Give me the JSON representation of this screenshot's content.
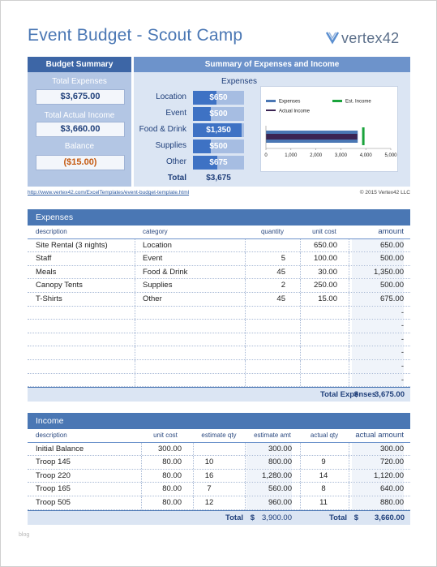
{
  "title": "Event Budget - Scout Camp",
  "logo": {
    "text": "vertex42",
    "icon": "vertex42-logo-icon"
  },
  "summary": {
    "header": "Budget Summary",
    "total_expenses_label": "Total Expenses",
    "total_expenses": "$3,675.00",
    "total_income_label": "Total Actual Income",
    "total_income": "$3,660.00",
    "balance_label": "Balance",
    "balance": "($15.00)"
  },
  "summary_right": {
    "header": "Summary of Expenses and Income",
    "expenses_header": "Expenses",
    "rows": [
      {
        "label": "Location",
        "value": "$650",
        "amount": 650
      },
      {
        "label": "Event",
        "value": "$500",
        "amount": 500
      },
      {
        "label": "Food & Drink",
        "value": "$1,350",
        "amount": 1350
      },
      {
        "label": "Supplies",
        "value": "$500",
        "amount": 500
      },
      {
        "label": "Other",
        "value": "$675",
        "amount": 675
      }
    ],
    "total_label": "Total",
    "total_value": "$3,675"
  },
  "chart_data": {
    "type": "bar",
    "orientation": "horizontal",
    "series": [
      {
        "name": "Expenses",
        "values": [
          3675
        ],
        "color": "#4a77b4"
      },
      {
        "name": "Actual Income",
        "values": [
          3660
        ],
        "color": "#3b2453"
      }
    ],
    "markers": [
      {
        "name": "Est. Income",
        "value": 3900,
        "color": "#1aa33b"
      }
    ],
    "xlim": [
      0,
      5000
    ],
    "ticks": [
      "0",
      "1,000",
      "2,000",
      "3,000",
      "4,000",
      "5,000"
    ],
    "legend": "top"
  },
  "link": "http://www.vertex42.com/ExcelTemplates/event-budget-template.html",
  "copyright": "© 2015 Vertex42 LLC",
  "expenses": {
    "header": "Expenses",
    "columns": [
      "description",
      "category",
      "quantity",
      "unit cost",
      "amount"
    ],
    "rows": [
      {
        "description": "Site Rental (3 nights)",
        "category": "Location",
        "quantity": "",
        "unit_cost": "650.00",
        "amount": "650.00"
      },
      {
        "description": "Staff",
        "category": "Event",
        "quantity": "5",
        "unit_cost": "100.00",
        "amount": "500.00"
      },
      {
        "description": "Meals",
        "category": "Food & Drink",
        "quantity": "45",
        "unit_cost": "30.00",
        "amount": "1,350.00"
      },
      {
        "description": "Canopy Tents",
        "category": "Supplies",
        "quantity": "2",
        "unit_cost": "250.00",
        "amount": "500.00"
      },
      {
        "description": "T-Shirts",
        "category": "Other",
        "quantity": "45",
        "unit_cost": "15.00",
        "amount": "675.00"
      },
      {
        "description": "",
        "category": "",
        "quantity": "",
        "unit_cost": "",
        "amount": "-"
      },
      {
        "description": "",
        "category": "",
        "quantity": "",
        "unit_cost": "",
        "amount": "-"
      },
      {
        "description": "",
        "category": "",
        "quantity": "",
        "unit_cost": "",
        "amount": "-"
      },
      {
        "description": "",
        "category": "",
        "quantity": "",
        "unit_cost": "",
        "amount": "-"
      },
      {
        "description": "",
        "category": "",
        "quantity": "",
        "unit_cost": "",
        "amount": "-"
      },
      {
        "description": "",
        "category": "",
        "quantity": "",
        "unit_cost": "",
        "amount": "-"
      }
    ],
    "total_label": "Total Expenses",
    "total_currency": "$",
    "total": "3,675.00"
  },
  "income": {
    "header": "Income",
    "columns": [
      "description",
      "unit cost",
      "estimate qty",
      "estimate amt",
      "actual qty",
      "actual amount"
    ],
    "rows": [
      {
        "description": "Initial Balance",
        "unit_cost": "300.00",
        "est_qty": "",
        "est_amt": "300.00",
        "act_qty": "",
        "act_amt": "300.00"
      },
      {
        "description": "Troop 145",
        "unit_cost": "80.00",
        "est_qty": "10",
        "est_amt": "800.00",
        "act_qty": "9",
        "act_amt": "720.00"
      },
      {
        "description": "Troop 220",
        "unit_cost": "80.00",
        "est_qty": "16",
        "est_amt": "1,280.00",
        "act_qty": "14",
        "act_amt": "1,120.00"
      },
      {
        "description": "Troop 165",
        "unit_cost": "80.00",
        "est_qty": "7",
        "est_amt": "560.00",
        "act_qty": "8",
        "act_amt": "640.00"
      },
      {
        "description": "Troop 505",
        "unit_cost": "80.00",
        "est_qty": "12",
        "est_amt": "960.00",
        "act_qty": "11",
        "act_amt": "880.00"
      }
    ],
    "total_label": "Total",
    "total_currency": "$",
    "est_total": "3,900.00",
    "act_total_label": "Total",
    "act_total_currency": "$",
    "act_total": "3,660.00"
  },
  "footer_mark": "blog",
  "colors": {
    "title": "#4a77b4",
    "header": "#3d66a6",
    "balance": "#c55a11",
    "bar": "#3e72c4"
  }
}
